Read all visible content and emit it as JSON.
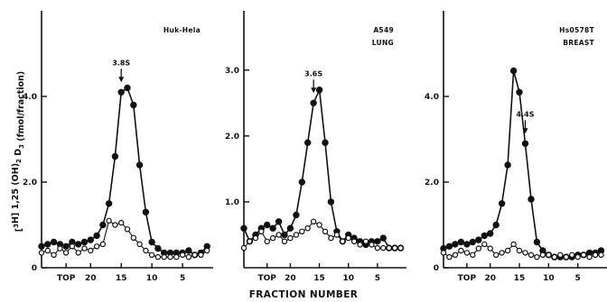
{
  "chart_data": {
    "type": "line",
    "xlabel": "FRACTION NUMBER",
    "ylabel": "[3H] 1,25 (OH)2 D3 (fmol/fraction)",
    "x_tick_labels": [
      "TOP",
      "20",
      "15",
      "10",
      "5"
    ],
    "x_tick_values": [
      24,
      20,
      15,
      10,
      5
    ],
    "xlim": [
      28,
      0
    ],
    "panels": [
      {
        "id": "hukhela",
        "label_lines": [
          "Huk-Hela"
        ],
        "peak_label": "3.8S",
        "peak_x": 15,
        "ylim": [
          0,
          6.0
        ],
        "y_ticks": [
          0,
          2.0,
          4.0
        ],
        "y_tick_labels": [
          "0",
          "2.0",
          "4.0"
        ],
        "series": [
          {
            "marker": "filled",
            "x": [
              28,
              27,
              26,
              25,
              24,
              23,
              22,
              21,
              20,
              19,
              18,
              17,
              16,
              15,
              14,
              13,
              12,
              11,
              10,
              9,
              8,
              7,
              6,
              5,
              4,
              3,
              2,
              1
            ],
            "y": [
              0.5,
              0.55,
              0.6,
              0.55,
              0.5,
              0.6,
              0.55,
              0.6,
              0.65,
              0.75,
              1.0,
              1.5,
              2.6,
              4.1,
              4.2,
              3.8,
              2.4,
              1.3,
              0.6,
              0.45,
              0.35,
              0.35,
              0.35,
              0.35,
              0.4,
              0.3,
              0.35,
              0.5
            ]
          },
          {
            "marker": "open",
            "x": [
              28,
              27,
              26,
              25,
              24,
              23,
              22,
              21,
              20,
              19,
              18,
              17,
              16,
              15,
              14,
              13,
              12,
              11,
              10,
              9,
              8,
              7,
              6,
              5,
              4,
              3,
              2,
              1
            ],
            "y": [
              0.35,
              0.4,
              0.3,
              0.45,
              0.35,
              0.5,
              0.35,
              0.45,
              0.4,
              0.5,
              0.55,
              1.1,
              1.0,
              1.05,
              0.9,
              0.7,
              0.55,
              0.4,
              0.3,
              0.25,
              0.25,
              0.25,
              0.25,
              0.3,
              0.25,
              0.3,
              0.3,
              0.4
            ]
          }
        ]
      },
      {
        "id": "a549",
        "label_lines": [
          "A549",
          "LUNG"
        ],
        "peak_label": "3.6S",
        "peak_x": 16,
        "ylim": [
          0,
          3.9
        ],
        "y_ticks": [
          1.0,
          2.0,
          3.0
        ],
        "y_tick_labels": [
          "1.0",
          "2.0",
          "3.0"
        ],
        "series": [
          {
            "marker": "filled",
            "x": [
              28,
              27,
              26,
              25,
              24,
              23,
              22,
              21,
              20,
              19,
              18,
              17,
              16,
              15,
              14,
              13,
              12,
              11,
              10,
              9,
              8,
              7,
              6,
              5,
              4,
              3,
              2,
              1
            ],
            "y": [
              0.6,
              0.4,
              0.5,
              0.6,
              0.65,
              0.6,
              0.7,
              0.5,
              0.6,
              0.8,
              1.3,
              1.9,
              2.5,
              2.7,
              1.9,
              1.0,
              0.55,
              0.4,
              0.5,
              0.45,
              0.4,
              0.35,
              0.4,
              0.4,
              0.45,
              0.3,
              0.3,
              0.3
            ]
          },
          {
            "marker": "open",
            "x": [
              28,
              27,
              26,
              25,
              24,
              23,
              22,
              21,
              20,
              19,
              18,
              17,
              16,
              15,
              14,
              13,
              12,
              11,
              10,
              9,
              8,
              7,
              6,
              5,
              4,
              3,
              2,
              1
            ],
            "y": [
              0.3,
              0.4,
              0.45,
              0.55,
              0.4,
              0.45,
              0.5,
              0.4,
              0.45,
              0.5,
              0.55,
              0.6,
              0.7,
              0.65,
              0.55,
              0.45,
              0.5,
              0.4,
              0.45,
              0.4,
              0.35,
              0.4,
              0.35,
              0.3,
              0.3,
              0.3,
              0.3,
              0.3
            ]
          }
        ]
      },
      {
        "id": "hs578t",
        "label_lines": [
          "Hs0578T",
          "BREAST"
        ],
        "peak_label": "4.4S",
        "peak_x": 14,
        "ylim": [
          0,
          6.0
        ],
        "y_ticks": [
          0,
          2.0,
          4.0
        ],
        "y_tick_labels": [
          "0",
          "2.0",
          "4.0"
        ],
        "series": [
          {
            "marker": "filled",
            "x": [
              28,
              27,
              26,
              25,
              24,
              23,
              22,
              21,
              20,
              19,
              18,
              17,
              16,
              15,
              14,
              13,
              12,
              11,
              10,
              9,
              8,
              7,
              6,
              5,
              4,
              3,
              2,
              1
            ],
            "y": [
              0.45,
              0.5,
              0.55,
              0.6,
              0.55,
              0.6,
              0.65,
              0.75,
              0.8,
              1.0,
              1.5,
              2.4,
              4.6,
              4.1,
              2.9,
              1.6,
              0.6,
              0.4,
              0.3,
              0.25,
              0.25,
              0.25,
              0.25,
              0.3,
              0.3,
              0.35,
              0.35,
              0.4
            ]
          },
          {
            "marker": "open",
            "x": [
              28,
              27,
              26,
              25,
              24,
              23,
              22,
              21,
              20,
              19,
              18,
              17,
              16,
              15,
              14,
              13,
              12,
              11,
              10,
              9,
              8,
              7,
              6,
              5,
              4,
              3,
              2,
              1
            ],
            "y": [
              0.35,
              0.25,
              0.3,
              0.4,
              0.35,
              0.3,
              0.45,
              0.55,
              0.45,
              0.3,
              0.35,
              0.4,
              0.55,
              0.4,
              0.35,
              0.3,
              0.25,
              0.3,
              0.3,
              0.25,
              0.3,
              0.25,
              0.3,
              0.25,
              0.3,
              0.25,
              0.3,
              0.3
            ]
          }
        ]
      }
    ]
  }
}
